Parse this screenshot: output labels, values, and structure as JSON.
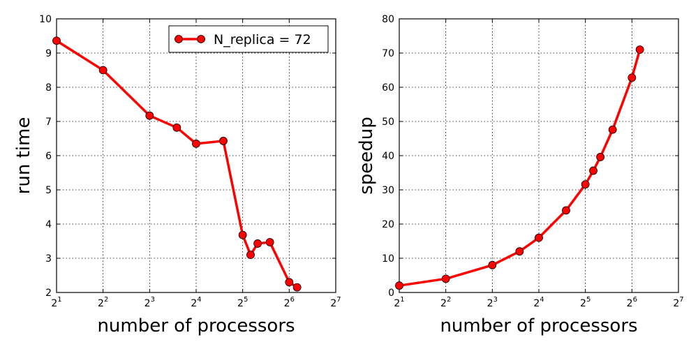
{
  "chart_data": [
    {
      "type": "line",
      "xlabel": "number of processors",
      "ylabel": "run time",
      "x_scale": "log2",
      "xlim": [
        2,
        128
      ],
      "ylim": [
        2,
        10
      ],
      "xticks": [
        {
          "base": "2",
          "exp": "1"
        },
        {
          "base": "2",
          "exp": "2"
        },
        {
          "base": "2",
          "exp": "3"
        },
        {
          "base": "2",
          "exp": "4"
        },
        {
          "base": "2",
          "exp": "5"
        },
        {
          "base": "2",
          "exp": "6"
        },
        {
          "base": "2",
          "exp": "7"
        }
      ],
      "yticks": [
        "2",
        "3",
        "4",
        "5",
        "6",
        "7",
        "8",
        "9",
        "10"
      ],
      "grid": true,
      "legend_position": "top-right",
      "color": "#ff0000",
      "series": [
        {
          "name": "N_replica = 72",
          "x": [
            2,
            4,
            8,
            12,
            16,
            24,
            32,
            36,
            40,
            48,
            64,
            72
          ],
          "y": [
            9.36,
            8.5,
            7.17,
            6.82,
            6.35,
            6.43,
            3.68,
            3.1,
            3.43,
            3.47,
            2.3,
            2.15
          ]
        }
      ]
    },
    {
      "type": "line",
      "xlabel": "number of processors",
      "ylabel": "speedup",
      "x_scale": "log2",
      "xlim": [
        2,
        128
      ],
      "ylim": [
        0,
        80
      ],
      "xticks": [
        {
          "base": "2",
          "exp": "1"
        },
        {
          "base": "2",
          "exp": "2"
        },
        {
          "base": "2",
          "exp": "3"
        },
        {
          "base": "2",
          "exp": "4"
        },
        {
          "base": "2",
          "exp": "5"
        },
        {
          "base": "2",
          "exp": "6"
        },
        {
          "base": "2",
          "exp": "7"
        }
      ],
      "yticks": [
        "0",
        "10",
        "20",
        "30",
        "40",
        "50",
        "60",
        "70",
        "80"
      ],
      "grid": true,
      "color": "#ff0000",
      "series": [
        {
          "x": [
            2,
            4,
            8,
            12,
            16,
            24,
            32,
            36,
            40,
            48,
            64,
            72
          ],
          "y": [
            2,
            4,
            8,
            12,
            16,
            24,
            31.6,
            35.6,
            39.6,
            47.6,
            62.8,
            71
          ]
        }
      ]
    }
  ]
}
